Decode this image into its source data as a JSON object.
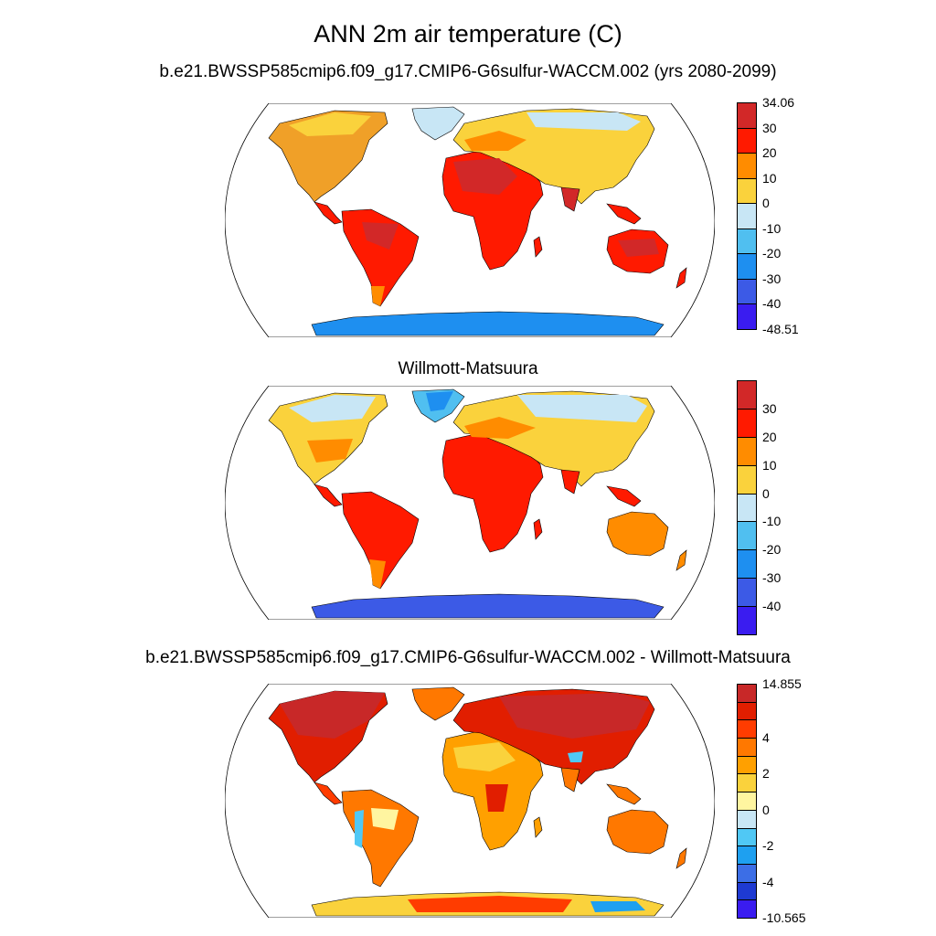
{
  "title": "ANN 2m air temperature (C)",
  "panels": [
    {
      "title": "b.e21.BWSSP585cmip6.f09_g17.CMIP6-G6sulfur-WACCM.002 (yrs 2080-2099)",
      "colorbar": {
        "colors": [
          "#3a1cf0",
          "#3c5ae6",
          "#1e8ff0",
          "#50bff0",
          "#c8e6f5",
          "#fad23c",
          "#ff8c00",
          "#ff1a00",
          "#d22828"
        ],
        "labels": [
          "-48.51",
          "-40",
          "-30",
          "-20",
          "-10",
          "0",
          "10",
          "20",
          "30",
          "34.06"
        ]
      }
    },
    {
      "title": "Willmott-Matsuura",
      "colorbar": {
        "colors": [
          "#3a1cf0",
          "#3c5ae6",
          "#1e8ff0",
          "#50bff0",
          "#c8e6f5",
          "#fad23c",
          "#ff8c00",
          "#ff1a00",
          "#d22828"
        ],
        "labels": [
          "-40",
          "-30",
          "-20",
          "-10",
          "0",
          "10",
          "20",
          "30"
        ]
      }
    },
    {
      "title": "b.e21.BWSSP585cmip6.f09_g17.CMIP6-G6sulfur-WACCM.002 - Willmott-Matsuura",
      "colorbar": {
        "colors": [
          "#3a1cf0",
          "#1e3ad2",
          "#3c6ee6",
          "#1ea0f0",
          "#50c8f5",
          "#c8e6f5",
          "#fff5a0",
          "#fad23c",
          "#ffa000",
          "#ff7800",
          "#ff3c00",
          "#e11e00",
          "#c82828"
        ],
        "labels": [
          "-10.565",
          "-4",
          "-2",
          "0",
          "2",
          "4",
          "14.855"
        ]
      }
    }
  ]
}
